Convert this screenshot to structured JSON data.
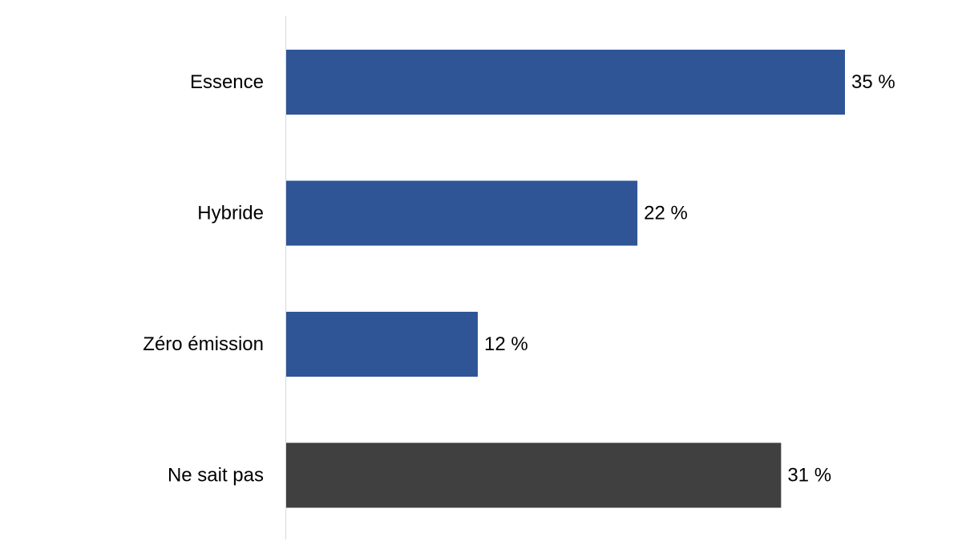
{
  "chart_data": {
    "type": "bar",
    "orientation": "horizontal",
    "categories": [
      "Essence",
      "Hybride",
      "Zéro émission",
      "Ne sait pas"
    ],
    "values": [
      35,
      22,
      12,
      31
    ],
    "value_labels": [
      "35 %",
      "22 %",
      "12 %",
      "31 %"
    ],
    "bar_colors": [
      "#2f5597",
      "#2f5597",
      "#2f5597",
      "#404040"
    ],
    "xlim": [
      0,
      35
    ],
    "grid": false,
    "legend": "none"
  }
}
